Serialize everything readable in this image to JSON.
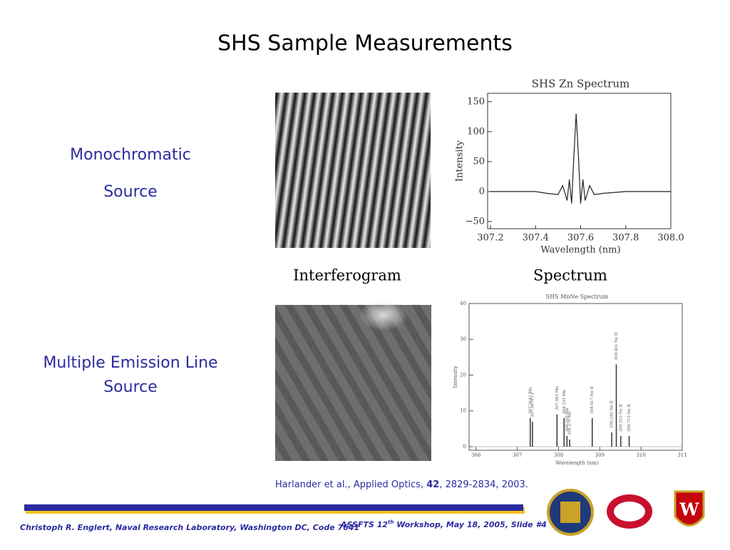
{
  "title": "SHS Sample Measurements",
  "rows": [
    {
      "label": [
        "Monochromatic",
        "Source"
      ]
    },
    {
      "label": [
        "Multiple Emission Line",
        "Source"
      ]
    }
  ],
  "captions": [
    "Interferogram",
    "Spectrum"
  ],
  "citation": {
    "authors": "Harlander et al., Applied Optics, ",
    "volume": "42",
    "rest": ", 2829-2834, 2003."
  },
  "footer": {
    "left": "Christoph R. Englert, Naval Research Laboratory, Washington DC, Code 7641",
    "right": [
      "ASSFTS 12",
      "th",
      " Workshop, May 18, 2005, Slide #4"
    ]
  },
  "charts": [
    {
      "type": "line",
      "title": "SHS Zn Spectrum",
      "xlabel": "Wavelength (nm)",
      "ylabel": "Intensity",
      "xlim": [
        307.2,
        308.0
      ],
      "ylim": [
        -62,
        164
      ],
      "xticks": [
        {
          "value": 307.2,
          "label": "307.2"
        },
        {
          "value": 307.4,
          "label": "307.4"
        },
        {
          "value": 307.6,
          "label": "307.6"
        },
        {
          "value": 307.8,
          "label": "307.8"
        },
        {
          "value": 308.0,
          "label": "308.0"
        }
      ],
      "yticks": [
        {
          "value": -50,
          "label": "−50"
        },
        0,
        50,
        100,
        150
      ],
      "x": [
        307.2,
        307.3,
        307.4,
        307.45,
        307.5,
        307.52,
        307.54,
        307.55,
        307.56,
        307.57,
        307.58,
        307.59,
        307.6,
        307.61,
        307.62,
        307.64,
        307.66,
        307.7,
        307.8,
        307.9,
        308.0
      ],
      "values": [
        0,
        0,
        0,
        -3,
        -5,
        10,
        -15,
        20,
        -20,
        60,
        130,
        60,
        -20,
        20,
        -15,
        10,
        -5,
        -3,
        0,
        0,
        0
      ]
    },
    {
      "type": "stem",
      "title": "SHS MnNe Spectrum",
      "xlabel": "Wavelength (nm)",
      "ylabel": "Intensity",
      "xlim": [
        305.9,
        311.0
      ],
      "ylim": [
        -1,
        40
      ],
      "xticks": [
        306,
        307,
        308,
        309,
        310,
        311
      ],
      "yticks": [
        0,
        10,
        20,
        30,
        40
      ],
      "x": [
        307.3141,
        307.3679,
        307.963,
        308.135,
        308.205,
        308.27,
        308.817,
        309.29,
        309.401,
        309.51,
        309.713
      ],
      "values": [
        8,
        7,
        9,
        8,
        3,
        2,
        8,
        4,
        23,
        3,
        3
      ],
      "peak_labels": [
        "307.3141 Mn",
        "307.3679 Cr",
        "307.963 Mn",
        "308.135 Mn",
        "308.205 Mn",
        "308.270 Mn",
        "308.817 Ne II",
        "309.290 Ne II",
        "309.401 Ne II",
        "309.510 Ne II",
        "309.713 Ne II"
      ]
    }
  ]
}
